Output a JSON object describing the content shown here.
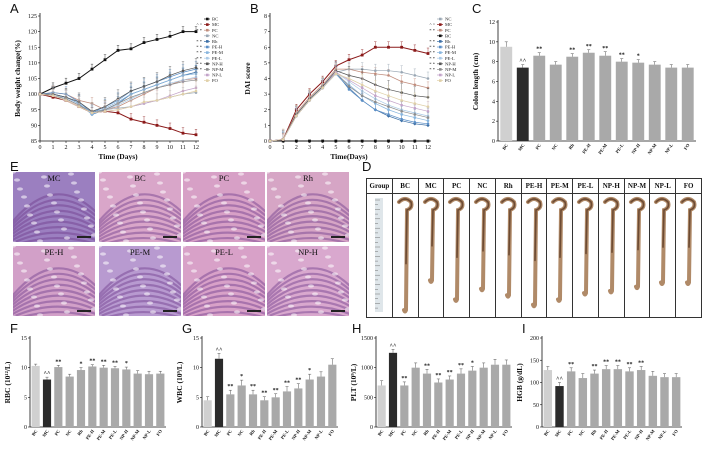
{
  "panels": {
    "A": "A",
    "B": "B",
    "C": "C",
    "D": "D",
    "E": "E",
    "F": "F",
    "G": "G",
    "H": "H",
    "I": "I"
  },
  "groups": [
    "BC",
    "MC",
    "PC",
    "NC",
    "Rh",
    "PE-H",
    "PE-M",
    "PE-L",
    "NP-H",
    "NP-M",
    "NP-L",
    "FO"
  ],
  "legend_marks": {
    "BC": "",
    "MC": "^ ^",
    "PC": "* *",
    "NC": "",
    "Rh": "* *",
    "PE-H": "* *",
    "PE-M": "* *",
    "PE-L": "* *",
    "NP-H": "* *",
    "NP-M": "* *",
    "NP-L": "",
    "FO": ""
  },
  "legend_marks_B": {
    "NC": "",
    "MC": "^ ^",
    "PC": "* *",
    "BC": "",
    "Rh": "* *",
    "PE-H": "* *",
    "PE-M": "* *",
    "PE-L": "* *",
    "NP-H": "* *",
    "NP-M": "* *",
    "NP-L": "",
    "FO": ""
  },
  "colors": {
    "BC": "#111111",
    "MC": "#8b1a1a",
    "PC": "#c08c7c",
    "NC": "#9aa7b4",
    "Rh": "#3b6ea5",
    "PE-H": "#5b8fc7",
    "PE-M": "#87b5de",
    "PE-L": "#aac9e6",
    "NP-H": "#555555",
    "NP-M": "#8c8c8c",
    "NP-L": "#c3a3c9",
    "FO": "#e0d0a8",
    "bar_light": "#d0d0d0",
    "bar_dark": "#2b2b2b",
    "bar_mid": "#a9a9a9"
  },
  "chart_data": [
    {
      "id": "A",
      "type": "line",
      "xlabel": "Time (Days)",
      "ylabel": "Body weight change(%)",
      "x": [
        0,
        1,
        2,
        3,
        4,
        5,
        6,
        7,
        8,
        9,
        10,
        11,
        12
      ],
      "xlim": [
        0,
        12
      ],
      "ylim": [
        85,
        125
      ],
      "yticks": [
        85,
        90,
        95,
        100,
        105,
        110,
        115,
        120,
        125
      ],
      "legend_order": [
        "BC",
        "MC",
        "PC",
        "NC",
        "Rh",
        "PE-H",
        "PE-M",
        "PE-L",
        "NP-H",
        "NP-M",
        "NP-L",
        "FO"
      ],
      "series": [
        {
          "name": "BC",
          "values": [
            100,
            102,
            103.5,
            105,
            108,
            111,
            114,
            114.5,
            116.5,
            117.5,
            118.5,
            120,
            120
          ]
        },
        {
          "name": "MC",
          "values": [
            100,
            99,
            98,
            96,
            94,
            94.5,
            94,
            92,
            91,
            90,
            89,
            87.5,
            87
          ]
        },
        {
          "name": "PC",
          "values": [
            100,
            100.5,
            100,
            98,
            97,
            95,
            96,
            98,
            100,
            102,
            103,
            104.5,
            105
          ]
        },
        {
          "name": "NC",
          "values": [
            100,
            99.5,
            98.5,
            96.5,
            94.5,
            95,
            95.5,
            96,
            97,
            98,
            99,
            100,
            100.5
          ]
        },
        {
          "name": "Rh",
          "values": [
            100,
            100,
            99,
            97,
            93.5,
            95,
            97,
            100,
            101.5,
            103,
            104.5,
            106,
            107
          ]
        },
        {
          "name": "PE-H",
          "values": [
            100,
            100.5,
            100,
            97.5,
            94,
            96,
            98,
            101,
            102.5,
            104,
            105.5,
            107,
            108
          ]
        },
        {
          "name": "PE-M",
          "values": [
            100,
            100,
            99,
            97,
            93.5,
            95.5,
            97.5,
            100,
            101.5,
            103,
            104.5,
            106,
            106.5
          ]
        },
        {
          "name": "PE-L",
          "values": [
            100,
            100,
            98.5,
            96.5,
            94,
            95,
            96.5,
            98.5,
            100.5,
            102,
            103.5,
            104.5,
            105.5
          ]
        },
        {
          "name": "NP-H",
          "values": [
            100,
            100,
            99,
            97.5,
            94.5,
            96,
            98.5,
            101,
            102.5,
            104,
            106,
            107.5,
            108.5
          ]
        },
        {
          "name": "NP-M",
          "values": [
            100,
            99.5,
            98.5,
            96.5,
            94,
            95,
            97,
            99,
            100.5,
            102,
            103,
            104,
            104.5
          ]
        },
        {
          "name": "NP-L",
          "values": [
            100,
            99.5,
            98,
            96,
            94,
            94.5,
            95,
            96,
            97,
            98,
            99.5,
            101,
            102
          ]
        },
        {
          "name": "FO",
          "values": [
            100,
            99.5,
            98,
            96,
            94,
            94.5,
            95,
            96,
            97.5,
            98,
            99,
            100,
            101
          ]
        }
      ]
    },
    {
      "id": "B",
      "type": "line",
      "xlabel": "Time(Days)",
      "ylabel": "DAI score",
      "x": [
        0,
        1,
        2,
        3,
        4,
        5,
        6,
        7,
        8,
        9,
        10,
        11,
        12
      ],
      "xlim": [
        0,
        12
      ],
      "ylim": [
        0,
        8
      ],
      "yticks": [
        0,
        1,
        2,
        3,
        4,
        5,
        6,
        7,
        8
      ],
      "legend_order": [
        "NC",
        "MC",
        "PC",
        "BC",
        "Rh",
        "PE-H",
        "PE-M",
        "PE-L",
        "NP-H",
        "NP-M",
        "NP-L",
        "FO"
      ],
      "series": [
        {
          "name": "BC",
          "values": [
            0,
            0,
            0,
            0,
            0,
            0,
            0,
            0,
            0,
            0,
            0,
            0,
            0
          ]
        },
        {
          "name": "MC",
          "values": [
            0,
            0.1,
            2,
            3,
            3.8,
            4.8,
            5.2,
            5.5,
            6,
            6,
            6,
            5.8,
            5.6
          ]
        },
        {
          "name": "PC",
          "values": [
            0,
            0.1,
            1.8,
            2.8,
            3.6,
            4.6,
            4.6,
            4.4,
            4.3,
            4.2,
            3.8,
            3.6,
            3.4
          ]
        },
        {
          "name": "NC",
          "values": [
            0,
            0.1,
            1.6,
            2.6,
            3.4,
            4.4,
            4.6,
            4.6,
            4.5,
            4.5,
            4.4,
            4.2,
            4.0
          ]
        },
        {
          "name": "Rh",
          "values": [
            0,
            0.1,
            1.6,
            2.6,
            3.4,
            4.3,
            3.4,
            2.6,
            2.0,
            1.6,
            1.3,
            1.1,
            1.0
          ]
        },
        {
          "name": "PE-H",
          "values": [
            0,
            0.1,
            1.7,
            2.6,
            3.5,
            4.4,
            3.3,
            2.6,
            2.0,
            1.7,
            1.4,
            1.2,
            1.1
          ]
        },
        {
          "name": "PE-M",
          "values": [
            0,
            0.1,
            1.6,
            2.7,
            3.4,
            4.3,
            3.6,
            2.9,
            2.4,
            2.0,
            1.7,
            1.5,
            1.3
          ]
        },
        {
          "name": "PE-L",
          "values": [
            0,
            0.1,
            1.6,
            2.6,
            3.4,
            4.4,
            3.8,
            3.2,
            2.7,
            2.3,
            2.0,
            1.8,
            1.6
          ]
        },
        {
          "name": "NP-H",
          "values": [
            0,
            0.1,
            1.7,
            2.7,
            3.5,
            4.5,
            4.2,
            4.0,
            3.6,
            3.3,
            3.1,
            2.9,
            2.8
          ]
        },
        {
          "name": "NP-M",
          "values": [
            0,
            0.1,
            1.6,
            2.6,
            3.4,
            4.4,
            3.5,
            2.9,
            2.5,
            2.2,
            1.9,
            1.7,
            1.5
          ]
        },
        {
          "name": "NP-L",
          "values": [
            0,
            0.1,
            1.6,
            2.6,
            3.4,
            4.4,
            3.9,
            3.4,
            2.9,
            2.6,
            2.3,
            2.1,
            1.9
          ]
        },
        {
          "name": "FO",
          "values": [
            0,
            0.1,
            1.6,
            2.6,
            3.4,
            4.3,
            4.0,
            3.6,
            3.2,
            2.9,
            2.6,
            2.4,
            2.2
          ]
        }
      ]
    },
    {
      "id": "C",
      "type": "bar",
      "ylabel": "Colon length (cm)",
      "categories": [
        "BC",
        "MC",
        "PC",
        "NC",
        "Rh",
        "PE-H",
        "PE-M",
        "PE-L",
        "NP-H",
        "NP-M",
        "NP-L",
        "FO"
      ],
      "values": [
        9.5,
        7.4,
        8.6,
        7.7,
        8.5,
        8.9,
        8.6,
        8.0,
        7.9,
        7.7,
        7.4,
        7.4
      ],
      "errors": [
        0.5,
        0.3,
        0.3,
        0.3,
        0.3,
        0.3,
        0.4,
        0.3,
        0.3,
        0.3,
        0.3,
        0.3
      ],
      "labels": [
        "",
        "^^",
        "**",
        "",
        "**",
        "**",
        "**",
        "**",
        "*",
        "",
        "",
        ""
      ],
      "ylim": [
        0,
        12
      ],
      "yticks": [
        0,
        2,
        4,
        6,
        8,
        10,
        12
      ]
    },
    {
      "id": "F",
      "type": "bar",
      "ylabel": "RBC (10¹²/L)",
      "categories": [
        "BC",
        "MC",
        "PC",
        "NC",
        "Rh",
        "PE-H",
        "PE-M",
        "PE-L",
        "NP-H",
        "NP-M",
        "NP-L",
        "FO"
      ],
      "values": [
        10.3,
        8.0,
        10.1,
        8.5,
        9.6,
        10.2,
        10.0,
        9.9,
        9.7,
        9.0,
        8.9,
        9.0
      ],
      "errors": [
        0.3,
        0.4,
        0.3,
        0.4,
        0.4,
        0.3,
        0.4,
        0.3,
        0.4,
        0.5,
        0.5,
        0.4
      ],
      "labels": [
        "",
        "^^",
        "**",
        "",
        "*",
        "**",
        "**",
        "**",
        "*",
        "",
        "",
        ""
      ],
      "ylim": [
        0,
        15
      ],
      "yticks": [
        0,
        5,
        10,
        15
      ]
    },
    {
      "id": "G",
      "type": "bar",
      "ylabel": "WBC (10⁹/L)",
      "categories": [
        "BC",
        "MC",
        "PC",
        "NC",
        "Rh",
        "PE-H",
        "PE-M",
        "PE-L",
        "NP-H",
        "NP-M",
        "NP-L",
        "FO"
      ],
      "values": [
        4.5,
        11.5,
        5.5,
        7.0,
        5.5,
        4.5,
        5.0,
        6.0,
        6.5,
        8.0,
        8.5,
        10.5
      ],
      "errors": [
        0.6,
        0.9,
        0.7,
        0.9,
        0.7,
        0.6,
        0.6,
        0.8,
        0.8,
        0.9,
        0.8,
        1.0
      ],
      "labels": [
        "",
        "^^",
        "**",
        "*",
        "**",
        "**",
        "**",
        "**",
        "**",
        "*",
        "",
        ""
      ],
      "ylim": [
        0,
        15
      ],
      "yticks": [
        0,
        5,
        10,
        15
      ]
    },
    {
      "id": "H",
      "type": "bar",
      "ylabel": "PLT (10⁹/L)",
      "categories": [
        "BC",
        "MC",
        "PC",
        "NC",
        "Rh",
        "PE-H",
        "PE-M",
        "PE-L",
        "NP-H",
        "NP-M",
        "NP-L",
        "FO"
      ],
      "values": [
        700,
        1250,
        700,
        1000,
        900,
        750,
        800,
        900,
        950,
        1000,
        1050,
        1050
      ],
      "errors": [
        80,
        60,
        60,
        80,
        70,
        60,
        60,
        80,
        70,
        80,
        90,
        80
      ],
      "labels": [
        "",
        "^^",
        "**",
        "",
        "**",
        "**",
        "**",
        "**",
        "*",
        "",
        "",
        ""
      ],
      "ylim": [
        0,
        1500
      ],
      "yticks": [
        0,
        500,
        1000,
        1500
      ]
    },
    {
      "id": "I",
      "type": "bar",
      "ylabel": "HGB (g/dL)",
      "categories": [
        "BC",
        "MC",
        "PC",
        "NC",
        "Rh",
        "PE-H",
        "PE-M",
        "PE-L",
        "NP-H",
        "NP-M",
        "NP-L",
        "FO"
      ],
      "values": [
        128,
        92,
        125,
        110,
        120,
        130,
        130,
        125,
        128,
        115,
        112,
        112
      ],
      "errors": [
        8,
        8,
        8,
        10,
        8,
        8,
        8,
        8,
        8,
        10,
        8,
        8
      ],
      "labels": [
        "",
        "^^",
        "**",
        "",
        "**",
        "**",
        "**",
        "**",
        "**",
        "",
        "",
        ""
      ],
      "ylim": [
        0,
        200
      ],
      "yticks": [
        0,
        50,
        100,
        150,
        200
      ]
    }
  ],
  "histology": [
    {
      "label": "MC",
      "fill": "#9b7fc0"
    },
    {
      "label": "BC",
      "fill": "#d9a6c9"
    },
    {
      "label": "PC",
      "fill": "#d7a0c6"
    },
    {
      "label": "Rh",
      "fill": "#d6a5c5"
    },
    {
      "label": "PE-H",
      "fill": "#d2a0c8"
    },
    {
      "label": "PE-M",
      "fill": "#b89ad0"
    },
    {
      "label": "PE-L",
      "fill": "#d8a1c8"
    },
    {
      "label": "NP-H",
      "fill": "#d9a8ce"
    }
  ],
  "gross": {
    "header": "Group",
    "colons": [
      "BC",
      "MC",
      "PC",
      "NC",
      "Rh",
      "PE-H",
      "PE-M",
      "PE-L",
      "NP-H",
      "NP-M",
      "NP-L",
      "FO"
    ]
  }
}
